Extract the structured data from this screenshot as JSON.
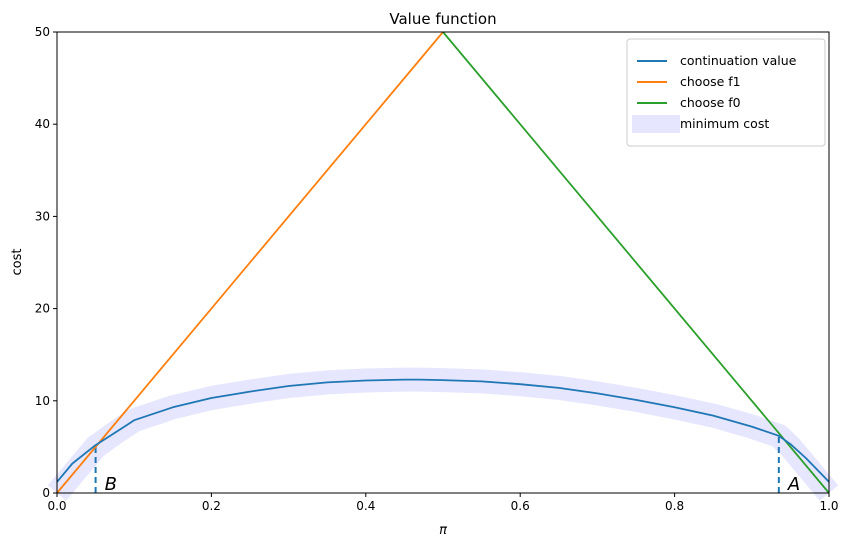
{
  "chart_data": {
    "type": "line",
    "title": "Value function",
    "xlabel": "π",
    "ylabel": "cost",
    "xlim": [
      0.0,
      1.0
    ],
    "ylim": [
      0,
      50
    ],
    "xticks": [
      "0.0",
      "0.2",
      "0.4",
      "0.6",
      "0.8",
      "1.0"
    ],
    "yticks": [
      "0",
      "10",
      "20",
      "30",
      "40",
      "50"
    ],
    "xtick_values": [
      0.0,
      0.2,
      0.4,
      0.6,
      0.8,
      1.0
    ],
    "ytick_values": [
      0,
      10,
      20,
      30,
      40,
      50
    ],
    "grid": false,
    "legend_position": "top-right",
    "series": [
      {
        "name": "continuation value",
        "color": "#1f77b4",
        "x": [
          0.0,
          0.02,
          0.05,
          0.08,
          0.1,
          0.15,
          0.2,
          0.25,
          0.3,
          0.35,
          0.4,
          0.45,
          0.47,
          0.5,
          0.55,
          0.6,
          0.65,
          0.7,
          0.75,
          0.8,
          0.85,
          0.9,
          0.935,
          0.95,
          0.97,
          1.0
        ],
        "y": [
          1.2,
          3.2,
          5.2,
          6.8,
          7.9,
          9.3,
          10.3,
          11.0,
          11.6,
          12.0,
          12.2,
          12.3,
          12.3,
          12.25,
          12.1,
          11.8,
          11.4,
          10.8,
          10.1,
          9.3,
          8.4,
          7.2,
          6.2,
          5.3,
          3.8,
          1.2
        ]
      },
      {
        "name": "choose f1",
        "color": "#ff7f0e",
        "x": [
          0.0,
          0.5
        ],
        "y": [
          0,
          50
        ]
      },
      {
        "name": "choose f0",
        "color": "#2ca02c",
        "x": [
          0.5,
          1.0
        ],
        "y": [
          50,
          0
        ]
      },
      {
        "name": "minimum cost",
        "color": "#e6e6ff",
        "x": [
          0.0,
          0.02,
          0.05,
          0.08,
          0.1,
          0.15,
          0.2,
          0.25,
          0.3,
          0.35,
          0.4,
          0.45,
          0.47,
          0.5,
          0.55,
          0.6,
          0.65,
          0.7,
          0.75,
          0.8,
          0.85,
          0.9,
          0.935,
          0.95,
          0.97,
          1.0
        ],
        "y": [
          0.0,
          2.0,
          5.0,
          6.8,
          7.9,
          9.3,
          10.3,
          11.0,
          11.6,
          12.0,
          12.2,
          12.3,
          12.3,
          12.25,
          12.1,
          11.8,
          11.4,
          10.8,
          10.1,
          9.3,
          8.4,
          7.2,
          6.2,
          5.0,
          3.0,
          0.0
        ]
      }
    ],
    "annotations": [
      {
        "text": "B",
        "x": 0.05,
        "y_top": 5.2
      },
      {
        "text": "A",
        "x": 0.935,
        "y_top": 6.2
      }
    ]
  }
}
